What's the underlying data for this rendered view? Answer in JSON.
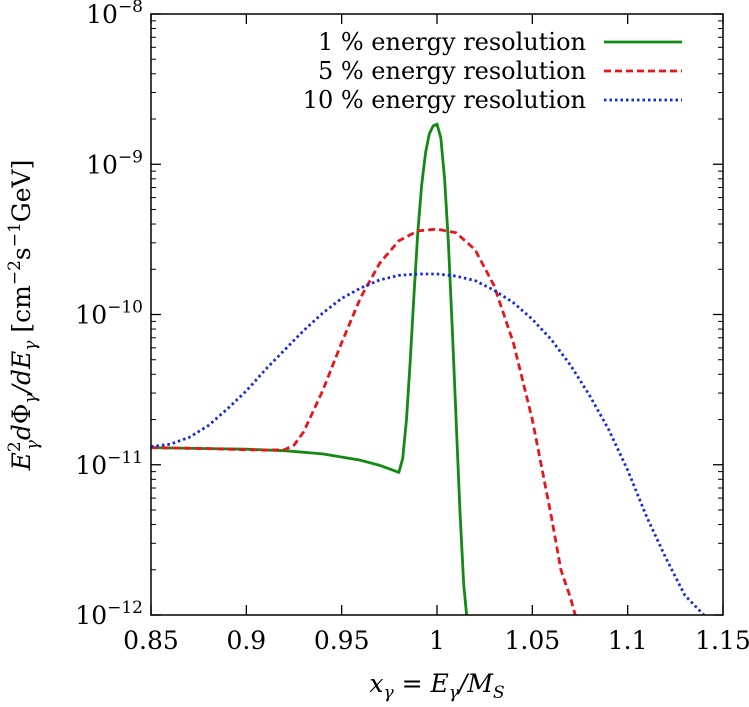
{
  "chart_data": {
    "type": "line",
    "xlabel": "x_γ = E_γ/M_S",
    "ylabel": "E_γ² dΦ_γ/dE_γ [cm⁻² s⁻¹ GeV]",
    "xlim": [
      0.85,
      1.15
    ],
    "ylim": [
      1e-12,
      1e-08
    ],
    "y_scale": "log",
    "grid": false,
    "legend_position": "top-right",
    "x_ticks": [
      {
        "value": 0.85,
        "label": "0.85"
      },
      {
        "value": 0.9,
        "label": "0.9"
      },
      {
        "value": 0.95,
        "label": "0.95"
      },
      {
        "value": 1.0,
        "label": "1"
      },
      {
        "value": 1.05,
        "label": "1.05"
      },
      {
        "value": 1.1,
        "label": "1.1"
      },
      {
        "value": 1.15,
        "label": "1.15"
      }
    ],
    "y_ticks": [
      {
        "value": 1e-12,
        "base": "10",
        "exp": "−12"
      },
      {
        "value": 1e-11,
        "base": "10",
        "exp": "−11"
      },
      {
        "value": 1e-10,
        "base": "10",
        "exp": "−10"
      },
      {
        "value": 1e-09,
        "base": "10",
        "exp": "−9"
      },
      {
        "value": 1e-08,
        "base": "10",
        "exp": "−8"
      }
    ],
    "series": [
      {
        "name": "1 % energy resolution",
        "color": "#138a13",
        "dash": "solid",
        "x": [
          0.85,
          0.88,
          0.9,
          0.92,
          0.94,
          0.96,
          0.97,
          0.975,
          0.98,
          0.982,
          0.984,
          0.986,
          0.988,
          0.99,
          0.992,
          0.994,
          0.996,
          0.998,
          1.0,
          1.002,
          1.004,
          1.006,
          1.008,
          1.01,
          1.012,
          1.014,
          1.0155
        ],
        "y": [
          1.3e-11,
          1.28e-11,
          1.27e-11,
          1.24e-11,
          1.18e-11,
          1.07e-11,
          9.9e-12,
          9.4e-12,
          8.9e-12,
          1.1e-11,
          2e-11,
          5e-11,
          1.4e-10,
          3.6e-10,
          7.3e-10,
          1.2e-09,
          1.6e-09,
          1.8e-09,
          1.85e-09,
          1.5e-09,
          8e-10,
          3e-10,
          8e-11,
          2e-11,
          5e-12,
          1.6e-12,
          1e-12
        ]
      },
      {
        "name": "5 % energy resolution",
        "color": "#e8151b",
        "dash": "dashed",
        "x": [
          0.85,
          0.88,
          0.9,
          0.91,
          0.92,
          0.925,
          0.93,
          0.94,
          0.95,
          0.96,
          0.97,
          0.98,
          0.99,
          1.0,
          1.01,
          1.02,
          1.03,
          1.04,
          1.05,
          1.06,
          1.065,
          1.07,
          1.0725
        ],
        "y": [
          1.3e-11,
          1.28e-11,
          1.26e-11,
          1.25e-11,
          1.26e-11,
          1.35e-11,
          1.65e-11,
          3.1e-11,
          6.5e-11,
          1.3e-10,
          2.2e-10,
          3.1e-10,
          3.6e-10,
          3.7e-10,
          3.5e-10,
          2.7e-10,
          1.55e-10,
          6.5e-11,
          2e-11,
          4.5e-12,
          2e-12,
          1.3e-12,
          1e-12
        ]
      },
      {
        "name": "10 % energy resolution",
        "color": "#1427e0",
        "dash": "dotted",
        "x": [
          0.85,
          0.86,
          0.87,
          0.88,
          0.89,
          0.9,
          0.91,
          0.92,
          0.93,
          0.94,
          0.95,
          0.96,
          0.97,
          0.98,
          0.99,
          1.0,
          1.01,
          1.02,
          1.03,
          1.04,
          1.05,
          1.06,
          1.07,
          1.08,
          1.09,
          1.1,
          1.11,
          1.12,
          1.13,
          1.14
        ],
        "y": [
          1.32e-11,
          1.37e-11,
          1.52e-11,
          1.82e-11,
          2.35e-11,
          3.1e-11,
          4.3e-11,
          5.8e-11,
          7.8e-11,
          1.02e-10,
          1.28e-10,
          1.5e-10,
          1.7e-10,
          1.82e-10,
          1.86e-10,
          1.86e-10,
          1.8e-10,
          1.68e-10,
          1.45e-10,
          1.2e-10,
          9.3e-11,
          6.8e-11,
          4.6e-11,
          2.9e-11,
          1.72e-11,
          9.2e-12,
          4.5e-12,
          2.4e-12,
          1.35e-12,
          1e-12
        ]
      }
    ]
  }
}
